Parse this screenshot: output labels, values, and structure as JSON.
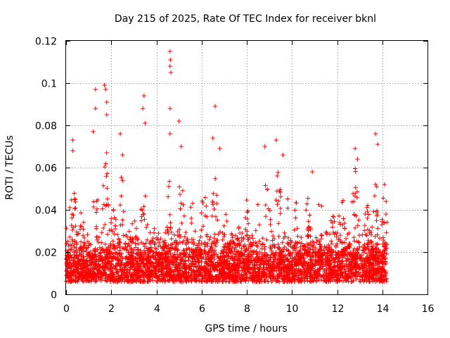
{
  "chart_data": {
    "type": "scatter",
    "title": "Day 215 of 2025, Rate Of TEC Index for receiver bknl",
    "xlabel": "GPS time / hours",
    "ylabel": "ROTI / TECUs",
    "xlim": [
      0,
      16
    ],
    "ylim": [
      0,
      0.12
    ],
    "xticks": [
      0,
      2,
      4,
      6,
      8,
      10,
      12,
      14,
      16
    ],
    "yticks": [
      0,
      0.02,
      0.04,
      0.06,
      0.08,
      0.1,
      0.12
    ],
    "xtick_labels": [
      "0",
      "2",
      "4",
      "6",
      "8",
      "10",
      "12",
      "14",
      "16"
    ],
    "ytick_labels": [
      "0",
      "0.02",
      "0.04",
      "0.06",
      "0.08",
      "0.1",
      "0.12"
    ],
    "grid": true,
    "marker": "+",
    "color": "#ff0000",
    "series": [
      {
        "name": "ROTI",
        "x_range": [
          0,
          14.2
        ],
        "baseline_band": [
          0.006,
          0.025
        ],
        "notable_points": [
          {
            "x": 4.6,
            "y": 0.115
          },
          {
            "x": 4.62,
            "y": 0.111
          },
          {
            "x": 4.6,
            "y": 0.108
          },
          {
            "x": 4.64,
            "y": 0.105
          },
          {
            "x": 1.7,
            "y": 0.099
          },
          {
            "x": 1.75,
            "y": 0.097
          },
          {
            "x": 1.3,
            "y": 0.097
          },
          {
            "x": 3.45,
            "y": 0.094
          },
          {
            "x": 1.8,
            "y": 0.091
          },
          {
            "x": 6.6,
            "y": 0.089
          },
          {
            "x": 1.3,
            "y": 0.088
          },
          {
            "x": 4.6,
            "y": 0.088
          },
          {
            "x": 3.4,
            "y": 0.088
          },
          {
            "x": 1.8,
            "y": 0.085
          },
          {
            "x": 5.0,
            "y": 0.082
          },
          {
            "x": 3.5,
            "y": 0.081
          },
          {
            "x": 1.2,
            "y": 0.077
          },
          {
            "x": 2.4,
            "y": 0.076
          },
          {
            "x": 13.7,
            "y": 0.076
          },
          {
            "x": 4.6,
            "y": 0.076
          },
          {
            "x": 6.5,
            "y": 0.074
          },
          {
            "x": 0.3,
            "y": 0.073
          },
          {
            "x": 9.3,
            "y": 0.073
          },
          {
            "x": 13.8,
            "y": 0.071
          },
          {
            "x": 8.8,
            "y": 0.07
          },
          {
            "x": 12.8,
            "y": 0.069
          },
          {
            "x": 0.3,
            "y": 0.068
          },
          {
            "x": 1.8,
            "y": 0.067
          },
          {
            "x": 5.1,
            "y": 0.07
          },
          {
            "x": 6.8,
            "y": 0.069
          },
          {
            "x": 9.6,
            "y": 0.066
          },
          {
            "x": 12.9,
            "y": 0.064
          },
          {
            "x": 2.5,
            "y": 0.066
          },
          {
            "x": 10.9,
            "y": 0.058
          },
          {
            "x": 14.1,
            "y": 0.052
          }
        ]
      }
    ],
    "envelope_peaks": [
      {
        "x": 0.0,
        "h": 0.035
      },
      {
        "x": 0.3,
        "h": 0.06
      },
      {
        "x": 0.7,
        "h": 0.04
      },
      {
        "x": 1.3,
        "h": 0.06
      },
      {
        "x": 1.75,
        "h": 0.07
      },
      {
        "x": 2.1,
        "h": 0.045
      },
      {
        "x": 2.5,
        "h": 0.06
      },
      {
        "x": 3.0,
        "h": 0.042
      },
      {
        "x": 3.45,
        "h": 0.065
      },
      {
        "x": 3.9,
        "h": 0.044
      },
      {
        "x": 4.6,
        "h": 0.055
      },
      {
        "x": 5.1,
        "h": 0.06
      },
      {
        "x": 5.6,
        "h": 0.052
      },
      {
        "x": 6.1,
        "h": 0.058
      },
      {
        "x": 6.6,
        "h": 0.06
      },
      {
        "x": 7.1,
        "h": 0.045
      },
      {
        "x": 7.6,
        "h": 0.038
      },
      {
        "x": 8.0,
        "h": 0.045
      },
      {
        "x": 8.5,
        "h": 0.047
      },
      {
        "x": 8.9,
        "h": 0.06
      },
      {
        "x": 9.4,
        "h": 0.065
      },
      {
        "x": 9.8,
        "h": 0.048
      },
      {
        "x": 10.2,
        "h": 0.045
      },
      {
        "x": 10.7,
        "h": 0.047
      },
      {
        "x": 11.3,
        "h": 0.055
      },
      {
        "x": 11.8,
        "h": 0.04
      },
      {
        "x": 12.2,
        "h": 0.05
      },
      {
        "x": 12.8,
        "h": 0.065
      },
      {
        "x": 13.3,
        "h": 0.048
      },
      {
        "x": 13.7,
        "h": 0.055
      },
      {
        "x": 14.1,
        "h": 0.05
      }
    ]
  }
}
